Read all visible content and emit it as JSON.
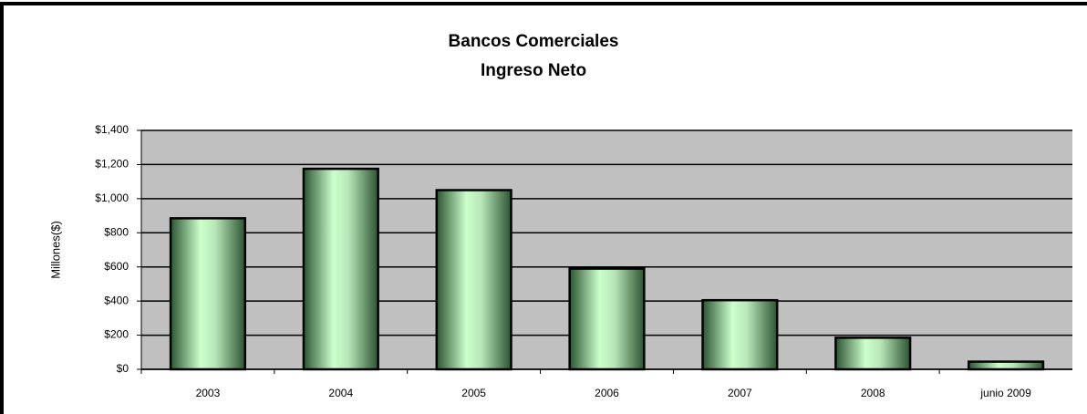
{
  "chart_data": {
    "type": "bar",
    "title": "Bancos Comerciales",
    "subtitle": "Ingreso Neto",
    "y_label": "Millones($)",
    "categories": [
      "2003",
      "2004",
      "2005",
      "2006",
      "2007",
      "2008",
      "junio 2009"
    ],
    "values": [
      885,
      1175,
      1050,
      590,
      405,
      185,
      45
    ],
    "color": "#ccffcc",
    "ylim": [
      0,
      1400
    ],
    "yticks": [
      {
        "value": 0,
        "label": "$0"
      },
      {
        "value": 200,
        "label": "$200"
      },
      {
        "value": 400,
        "label": "$400"
      },
      {
        "value": 600,
        "label": "$600"
      },
      {
        "value": 800,
        "label": "$800"
      },
      {
        "value": 1000,
        "label": "$1,000"
      },
      {
        "value": 1200,
        "label": "$1,200"
      },
      {
        "value": 1400,
        "label": "$1,400"
      }
    ],
    "grid": true
  }
}
